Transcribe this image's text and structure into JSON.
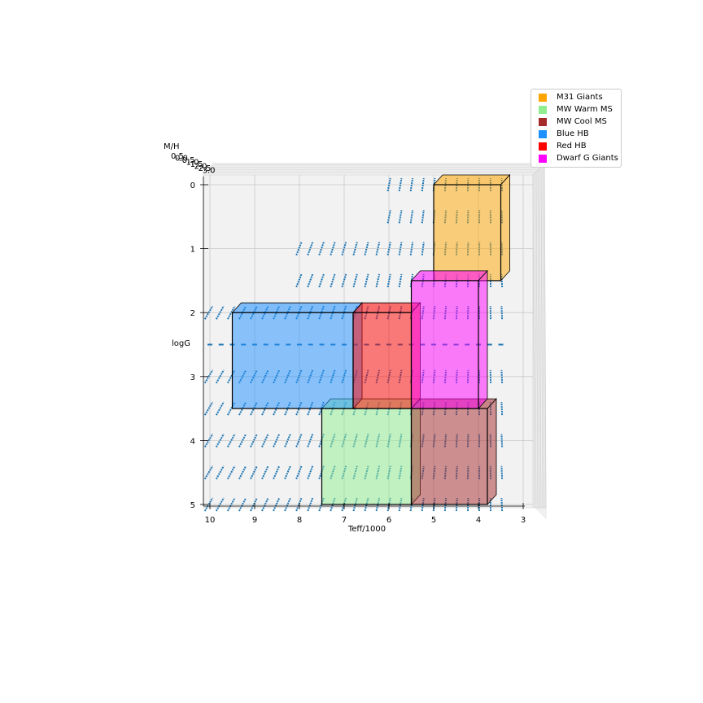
{
  "chart_data": {
    "type": "3d-box-region",
    "xlabel": "Teff/1000",
    "ylabel": "logG",
    "zlabel": "M/H",
    "xlim": [
      10,
      3
    ],
    "ylim": [
      0,
      5
    ],
    "x_ticks": [
      "10",
      "9",
      "8",
      "7",
      "6",
      "5",
      "4",
      "3"
    ],
    "y_ticks": [
      "0",
      "1",
      "2",
      "3",
      "4",
      "5"
    ],
    "z_ticks": [
      "0.5",
      "0.0",
      "-0.5",
      "-1.0",
      "-1.5",
      "-2.0",
      "-2.5",
      "-3.0"
    ],
    "legend_position": "upper-right",
    "regions": [
      {
        "name": "M31 Giants",
        "color": "#FFA500",
        "teff": [
          3.5,
          5.0
        ],
        "logg": [
          0.0,
          1.5
        ]
      },
      {
        "name": "MW Warm MS",
        "color": "#90EE90",
        "teff": [
          5.5,
          7.5
        ],
        "logg": [
          3.5,
          5.0
        ]
      },
      {
        "name": "MW Cool MS",
        "color": "#A52A2A",
        "teff": [
          3.8,
          5.5
        ],
        "logg": [
          3.5,
          5.0
        ]
      },
      {
        "name": "Blue HB",
        "color": "#1E90FF",
        "teff": [
          6.8,
          9.5
        ],
        "logg": [
          2.0,
          3.5
        ]
      },
      {
        "name": "Red HB",
        "color": "#FF0000",
        "teff": [
          5.5,
          6.8
        ],
        "logg": [
          2.0,
          3.5
        ]
      },
      {
        "name": "Dwarf G Giants",
        "color": "#FF00FF",
        "teff": [
          4.0,
          5.5
        ],
        "logg": [
          1.5,
          3.5
        ]
      }
    ],
    "grid_points": {
      "color": "#1F77B4",
      "logg_rows": [
        0.0,
        0.5,
        1.0,
        1.5,
        2.0,
        2.5,
        3.0,
        3.5,
        4.0,
        4.5,
        5.0
      ],
      "teff_min": [
        6.0,
        6.0,
        8.0,
        8.0,
        10.0,
        10.0,
        10.0,
        10.0,
        10.0,
        10.0,
        10.0
      ],
      "teff_max": [
        3.5,
        3.5,
        3.5,
        3.5,
        3.5,
        3.5,
        3.5,
        3.5,
        3.5,
        3.5,
        3.5
      ]
    }
  }
}
